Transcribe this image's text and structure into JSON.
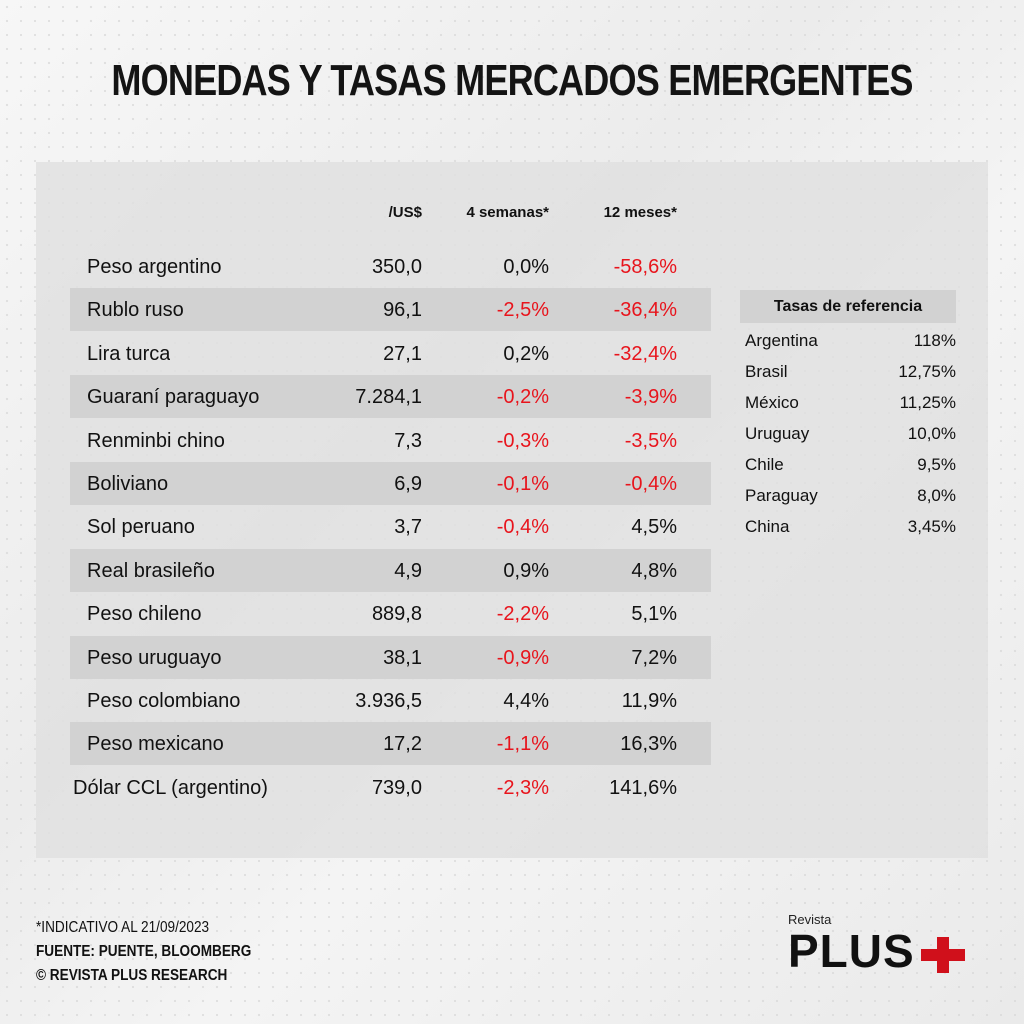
{
  "title": "MONEDAS Y TASAS MERCADOS EMERGENTES",
  "headers": {
    "usd": "/US$",
    "w4": "4 semanas*",
    "m12": "12 meses*"
  },
  "rows": [
    {
      "name": "Peso argentino",
      "usd": "350,0",
      "w4": "0,0%",
      "m12": "-58,6%"
    },
    {
      "name": "Rublo ruso",
      "usd": "96,1",
      "w4": "-2,5%",
      "m12": "-36,4%"
    },
    {
      "name": "Lira turca",
      "usd": "27,1",
      "w4": "0,2%",
      "m12": "-32,4%"
    },
    {
      "name": "Guaraní paraguayo",
      "usd": "7.284,1",
      "w4": "-0,2%",
      "m12": "-3,9%"
    },
    {
      "name": "Renminbi chino",
      "usd": "7,3",
      "w4": "-0,3%",
      "m12": "-3,5%"
    },
    {
      "name": "Boliviano",
      "usd": "6,9",
      "w4": "-0,1%",
      "m12": "-0,4%"
    },
    {
      "name": "Sol peruano",
      "usd": "3,7",
      "w4": "-0,4%",
      "m12": "4,5%"
    },
    {
      "name": "Real brasileño",
      "usd": "4,9",
      "w4": "0,9%",
      "m12": "4,8%"
    },
    {
      "name": "Peso chileno",
      "usd": "889,8",
      "w4": "-2,2%",
      "m12": "5,1%"
    },
    {
      "name": "Peso uruguayo",
      "usd": "38,1",
      "w4": "-0,9%",
      "m12": "7,2%"
    },
    {
      "name": "Peso colombiano",
      "usd": "3.936,5",
      "w4": "4,4%",
      "m12": "11,9%"
    },
    {
      "name": "Peso mexicano",
      "usd": "17,2",
      "w4": "-1,1%",
      "m12": "16,3%"
    },
    {
      "name": "Dólar CCL (argentino)",
      "usd": "739,0",
      "w4": "-2,3%",
      "m12": "141,6%"
    }
  ],
  "reference": {
    "title": "Tasas de referencia",
    "items": [
      {
        "name": "Argentina",
        "value": "118%"
      },
      {
        "name": "Brasil",
        "value": "12,75%"
      },
      {
        "name": "México",
        "value": "11,25%"
      },
      {
        "name": "Uruguay",
        "value": "10,0%"
      },
      {
        "name": "Chile",
        "value": "9,5%"
      },
      {
        "name": "Paraguay",
        "value": "8,0%"
      },
      {
        "name": "China",
        "value": "3,45%"
      }
    ]
  },
  "footer": {
    "note": "*INDICATIVO AL 21/09/2023",
    "source": "FUENTE: PUENTE, BLOOMBERG",
    "copyright": "© REVISTA PLUS RESEARCH"
  },
  "logo": {
    "small": "Revista",
    "big": "PLUS"
  },
  "colors": {
    "negative": "#e8141c",
    "brand": "#d0101b"
  }
}
